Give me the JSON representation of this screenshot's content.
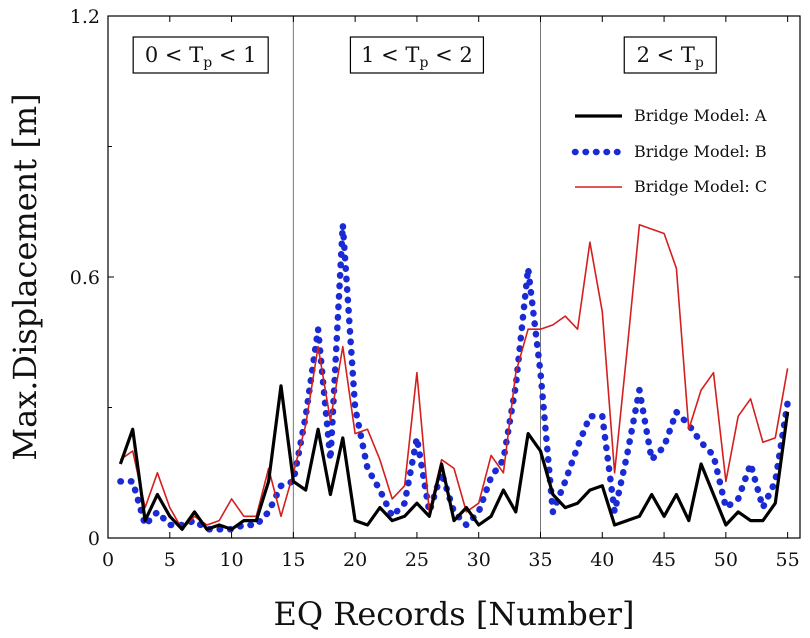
{
  "chart_data": {
    "type": "line",
    "title": "",
    "xlabel": "EQ Records [Number]",
    "ylabel": "Max.Displacement [m]",
    "xlim": [
      0,
      56
    ],
    "ylim": [
      0,
      1.2
    ],
    "xticks": [
      0,
      5,
      10,
      15,
      20,
      25,
      30,
      35,
      40,
      45,
      50,
      55
    ],
    "yticks": [
      0,
      0.6,
      1.2
    ],
    "ytick_labels": [
      "0",
      "0.6",
      "1.2"
    ],
    "grid": false,
    "legend_position": "top-right",
    "dividers": [
      15,
      35
    ],
    "regions": [
      {
        "prefix": "0 < T",
        "sub": "p",
        "suffix": " < 1",
        "x_center": 7.5
      },
      {
        "prefix": "1 < T",
        "sub": "p",
        "suffix": " < 2",
        "x_center": 25
      },
      {
        "prefix": "2 < T",
        "sub": "p",
        "suffix": "",
        "x_center": 45.5
      }
    ],
    "x": [
      1,
      2,
      3,
      4,
      5,
      6,
      7,
      8,
      9,
      10,
      11,
      12,
      13,
      14,
      15,
      16,
      17,
      18,
      19,
      20,
      21,
      22,
      23,
      24,
      25,
      26,
      27,
      28,
      29,
      30,
      31,
      32,
      33,
      34,
      35,
      36,
      37,
      38,
      39,
      40,
      41,
      42,
      43,
      44,
      45,
      46,
      47,
      48,
      49,
      50,
      51,
      52,
      53,
      54,
      55
    ],
    "series": [
      {
        "name": "Bridge Model: A",
        "color": "#000000",
        "style": "solid",
        "values": [
          0.17,
          0.25,
          0.04,
          0.1,
          0.05,
          0.02,
          0.06,
          0.02,
          0.03,
          0.02,
          0.04,
          0.04,
          0.13,
          0.35,
          0.13,
          0.11,
          0.25,
          0.1,
          0.23,
          0.04,
          0.03,
          0.07,
          0.04,
          0.05,
          0.08,
          0.05,
          0.17,
          0.04,
          0.07,
          0.03,
          0.05,
          0.11,
          0.06,
          0.24,
          0.2,
          0.1,
          0.07,
          0.08,
          0.11,
          0.12,
          0.03,
          0.04,
          0.05,
          0.1,
          0.05,
          0.1,
          0.04,
          0.17,
          0.1,
          0.03,
          0.06,
          0.04,
          0.04,
          0.08,
          0.29
        ]
      },
      {
        "name": "Bridge Model: B",
        "color": "#1a2bd6",
        "style": "dotted",
        "values": [
          0.13,
          0.13,
          0.03,
          0.06,
          0.03,
          0.03,
          0.04,
          0.02,
          0.02,
          0.02,
          0.03,
          0.03,
          0.06,
          0.12,
          0.13,
          0.28,
          0.48,
          0.18,
          0.72,
          0.3,
          0.16,
          0.11,
          0.05,
          0.08,
          0.23,
          0.06,
          0.15,
          0.06,
          0.03,
          0.06,
          0.14,
          0.18,
          0.35,
          0.62,
          0.38,
          0.06,
          0.13,
          0.21,
          0.28,
          0.28,
          0.06,
          0.19,
          0.34,
          0.18,
          0.21,
          0.29,
          0.26,
          0.22,
          0.19,
          0.07,
          0.09,
          0.17,
          0.07,
          0.13,
          0.31
        ]
      },
      {
        "name": "Bridge Model: C",
        "color": "#d41f1f",
        "style": "solid-thin",
        "values": [
          0.18,
          0.2,
          0.07,
          0.15,
          0.07,
          0.02,
          0.05,
          0.03,
          0.04,
          0.09,
          0.05,
          0.05,
          0.16,
          0.05,
          0.15,
          0.26,
          0.44,
          0.27,
          0.44,
          0.24,
          0.25,
          0.18,
          0.09,
          0.12,
          0.38,
          0.06,
          0.18,
          0.16,
          0.06,
          0.08,
          0.19,
          0.15,
          0.38,
          0.48,
          0.48,
          0.49,
          0.51,
          0.48,
          0.68,
          0.52,
          0.15,
          0.43,
          0.72,
          0.71,
          0.7,
          0.62,
          0.25,
          0.34,
          0.38,
          0.13,
          0.28,
          0.32,
          0.22,
          0.23,
          0.39
        ]
      }
    ]
  }
}
